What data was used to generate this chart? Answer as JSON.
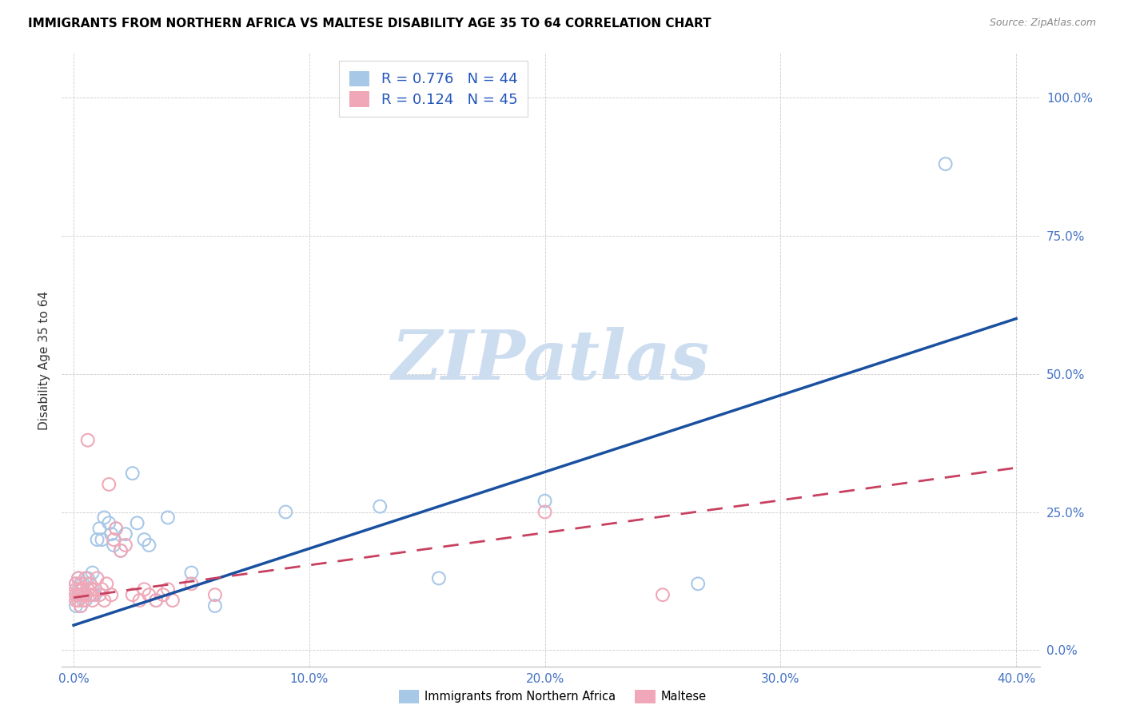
{
  "title": "IMMIGRANTS FROM NORTHERN AFRICA VS MALTESE DISABILITY AGE 35 TO 64 CORRELATION CHART",
  "source": "Source: ZipAtlas.com",
  "ylabel": "Disability Age 35 to 64",
  "x_tick_labels": [
    "0.0%",
    "10.0%",
    "20.0%",
    "30.0%",
    "40.0%"
  ],
  "y_tick_labels": [
    "0.0%",
    "25.0%",
    "50.0%",
    "75.0%",
    "100.0%"
  ],
  "x_tick_vals": [
    0.0,
    0.1,
    0.2,
    0.3,
    0.4
  ],
  "y_tick_vals": [
    0.0,
    0.25,
    0.5,
    0.75,
    1.0
  ],
  "xlim": [
    -0.005,
    0.41
  ],
  "ylim": [
    -0.03,
    1.08
  ],
  "legend_label1": "Immigrants from Northern Africa",
  "legend_label2": "Maltese",
  "R1": "0.776",
  "N1": "44",
  "R2": "0.124",
  "N2": "45",
  "color_blue_scatter": "#a8c8e8",
  "color_pink_scatter": "#f0a8b8",
  "color_blue_line": "#1a50a0",
  "color_pink_line": "#c84060",
  "watermark_text": "ZIPatlas",
  "watermark_color": "#cdddf0",
  "blue_line_x0": 0.0,
  "blue_line_y0": 0.045,
  "blue_line_x1": 0.4,
  "blue_line_y1": 0.6,
  "pink_line_x0": 0.0,
  "pink_line_y0": 0.095,
  "pink_line_x1": 0.4,
  "pink_line_y1": 0.33,
  "blue_scatter_x": [
    0.001,
    0.001,
    0.001,
    0.002,
    0.002,
    0.002,
    0.003,
    0.003,
    0.003,
    0.004,
    0.004,
    0.005,
    0.005,
    0.006,
    0.006,
    0.007,
    0.007,
    0.008,
    0.008,
    0.009,
    0.01,
    0.011,
    0.012,
    0.013,
    0.015,
    0.016,
    0.017,
    0.018,
    0.02,
    0.022,
    0.025,
    0.027,
    0.03,
    0.032,
    0.035,
    0.04,
    0.05,
    0.06,
    0.09,
    0.13,
    0.155,
    0.2,
    0.265,
    0.37
  ],
  "blue_scatter_y": [
    0.1,
    0.12,
    0.08,
    0.11,
    0.09,
    0.13,
    0.1,
    0.12,
    0.08,
    0.11,
    0.12,
    0.1,
    0.09,
    0.13,
    0.11,
    0.12,
    0.1,
    0.14,
    0.11,
    0.1,
    0.2,
    0.22,
    0.2,
    0.24,
    0.23,
    0.21,
    0.19,
    0.22,
    0.18,
    0.21,
    0.32,
    0.23,
    0.2,
    0.19,
    0.09,
    0.24,
    0.14,
    0.08,
    0.25,
    0.26,
    0.13,
    0.27,
    0.12,
    0.88
  ],
  "pink_scatter_x": [
    0.001,
    0.001,
    0.001,
    0.001,
    0.002,
    0.002,
    0.002,
    0.003,
    0.003,
    0.003,
    0.004,
    0.004,
    0.004,
    0.005,
    0.005,
    0.006,
    0.006,
    0.007,
    0.007,
    0.008,
    0.008,
    0.009,
    0.01,
    0.011,
    0.012,
    0.013,
    0.014,
    0.015,
    0.016,
    0.017,
    0.018,
    0.02,
    0.022,
    0.025,
    0.028,
    0.03,
    0.032,
    0.035,
    0.038,
    0.04,
    0.042,
    0.05,
    0.06,
    0.2,
    0.25
  ],
  "pink_scatter_y": [
    0.1,
    0.11,
    0.09,
    0.12,
    0.1,
    0.13,
    0.09,
    0.11,
    0.08,
    0.12,
    0.1,
    0.11,
    0.09,
    0.13,
    0.1,
    0.38,
    0.11,
    0.1,
    0.12,
    0.09,
    0.1,
    0.11,
    0.13,
    0.1,
    0.11,
    0.09,
    0.12,
    0.3,
    0.1,
    0.2,
    0.22,
    0.18,
    0.19,
    0.1,
    0.09,
    0.11,
    0.1,
    0.09,
    0.1,
    0.11,
    0.09,
    0.12,
    0.1,
    0.25,
    0.1
  ]
}
